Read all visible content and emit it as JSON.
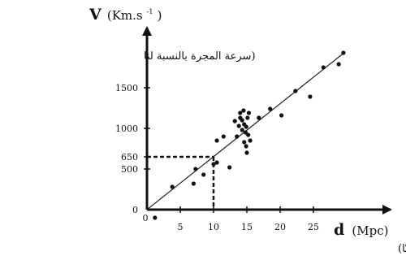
{
  "chart_data": {
    "type": "scatter",
    "title": "",
    "ylabel": {
      "symbol": "V",
      "unit": "(Km.s",
      "unit_sup": "-1",
      "unit_close": ")",
      "arabic": "(سرعة المجرة بالنسبة لنا"
    },
    "xlabel": {
      "symbol": "d",
      "unit": "(Mpc)",
      "arabic": "(بُعد المجرة عنّا)"
    },
    "x_ticks": [
      {
        "value": 0,
        "label": "0"
      },
      {
        "value": 5,
        "label": "5"
      },
      {
        "value": 10,
        "label": "10"
      },
      {
        "value": 15,
        "label": "15"
      },
      {
        "value": 20,
        "label": "20"
      },
      {
        "value": 25,
        "label": "25"
      }
    ],
    "y_ticks": [
      {
        "value": 0,
        "label": "0"
      },
      {
        "value": 500,
        "label": "500"
      },
      {
        "value": 650,
        "label": "650"
      },
      {
        "value": 1000,
        "label": "1000"
      },
      {
        "value": 1500,
        "label": "1500"
      }
    ],
    "xlim": [
      0,
      35
    ],
    "ylim": [
      -150,
      2300
    ],
    "grid": false,
    "legend": "none",
    "fit_line": {
      "x": [
        0,
        29.6
      ],
      "y": [
        0,
        1930
      ]
    },
    "guide": {
      "x": 10,
      "y": 650,
      "style": "dashed"
    },
    "points": [
      [
        1.2,
        -100
      ],
      [
        3.8,
        280
      ],
      [
        7.0,
        320
      ],
      [
        7.3,
        500
      ],
      [
        8.5,
        430
      ],
      [
        10.0,
        560
      ],
      [
        10.5,
        580
      ],
      [
        10.5,
        850
      ],
      [
        11.5,
        900
      ],
      [
        12.4,
        520
      ],
      [
        13.2,
        1090
      ],
      [
        13.5,
        900
      ],
      [
        13.8,
        1030
      ],
      [
        14.0,
        1130
      ],
      [
        14.0,
        1190
      ],
      [
        14.3,
        980
      ],
      [
        14.3,
        1100
      ],
      [
        14.5,
        1220
      ],
      [
        14.6,
        1050
      ],
      [
        14.6,
        830
      ],
      [
        14.8,
        950
      ],
      [
        14.9,
        780
      ],
      [
        14.9,
        1020
      ],
      [
        15.0,
        700
      ],
      [
        15.1,
        1130
      ],
      [
        15.2,
        920
      ],
      [
        15.3,
        1190
      ],
      [
        15.5,
        850
      ],
      [
        16.8,
        1130
      ],
      [
        18.5,
        1240
      ],
      [
        20.2,
        1160
      ],
      [
        22.3,
        1460
      ],
      [
        24.5,
        1390
      ],
      [
        26.5,
        1750
      ],
      [
        28.8,
        1790
      ],
      [
        29.5,
        1930
      ]
    ]
  }
}
